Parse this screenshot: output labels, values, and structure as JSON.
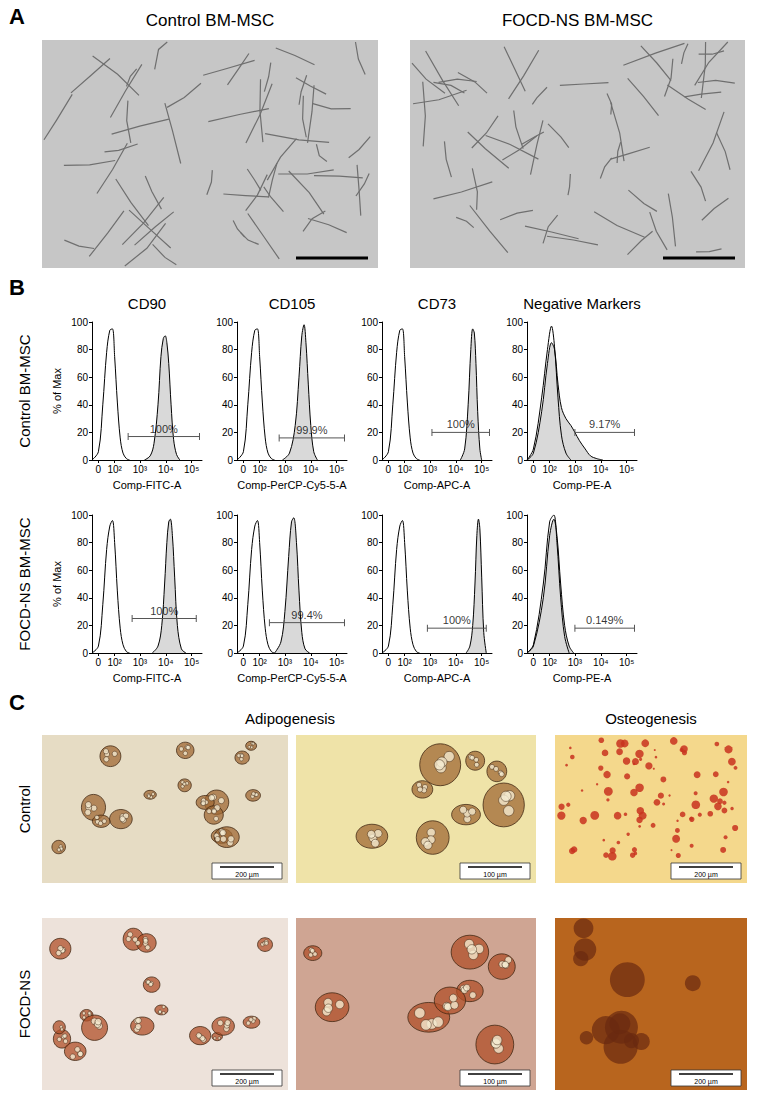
{
  "figure": {
    "panel_A": {
      "letter": "A",
      "images": [
        {
          "title": "Control BM-MSC"
        },
        {
          "title": "FOCD-NS BM-MSC"
        }
      ]
    },
    "panel_B": {
      "letter": "B",
      "columns": [
        "CD90",
        "CD105",
        "CD73",
        "Negative Markers"
      ],
      "rows": [
        "Control BM-MSC",
        "FOCD-NS BM-MSC"
      ]
    },
    "panel_C": {
      "letter": "C",
      "columns": [
        "Adipogenesis",
        "Osteogenesis"
      ],
      "rows": [
        "Control",
        "FOCD-NS"
      ],
      "scale_bars": [
        [
          "200 µm",
          "100 µm",
          "200 µm"
        ],
        [
          "200 µm",
          "100 µm",
          "200 µm"
        ]
      ]
    }
  },
  "chart_data": [
    {
      "type": "line",
      "x_label": "Comp-FITC-A",
      "y_label": "% of Max",
      "grid": false,
      "xlim": [
        -30,
        250000
      ],
      "xticks": [
        {
          "value": 0,
          "label": "0"
        },
        {
          "value": 100,
          "label": "10²"
        },
        {
          "value": 1000,
          "label": "10³"
        },
        {
          "value": 10000,
          "label": "10⁴"
        },
        {
          "value": 100000,
          "label": "10⁵"
        }
      ],
      "ylim": [
        0,
        100
      ],
      "yticks": [
        0,
        20,
        40,
        60,
        80,
        100
      ],
      "series": [
        {
          "type": "area",
          "color": "#d9d9d9",
          "x": [
            1500,
            2500,
            3500,
            5000,
            6500,
            8000,
            9500,
            11000,
            13000,
            16000,
            20000,
            26000,
            35000
          ],
          "values": [
            0,
            3,
            12,
            40,
            75,
            88,
            90,
            85,
            70,
            40,
            15,
            4,
            0
          ]
        },
        {
          "type": "line",
          "color": "#000000",
          "x": [
            -30,
            0,
            20,
            40,
            60,
            80,
            100,
            130,
            170,
            220,
            300,
            400
          ],
          "values": [
            0,
            6,
            40,
            78,
            94,
            95,
            75,
            42,
            16,
            5,
            1,
            0
          ]
        }
      ],
      "gate": {
        "x": [
          350,
          200000
        ],
        "y": 17,
        "label": "100%"
      }
    },
    {
      "type": "line",
      "x_label": "Comp-PerCP-Cy5-5-A",
      "grid": false,
      "xlim": [
        -30,
        250000
      ],
      "xticks": [
        {
          "value": 0,
          "label": "0"
        },
        {
          "value": 100,
          "label": "10²"
        },
        {
          "value": 1000,
          "label": "10³"
        },
        {
          "value": 10000,
          "label": "10⁴"
        },
        {
          "value": 100000,
          "label": "10⁵"
        }
      ],
      "ylim": [
        0,
        100
      ],
      "yticks": [
        0,
        20,
        40,
        60,
        80,
        100
      ],
      "series": [
        {
          "type": "area",
          "color": "#d9d9d9",
          "x": [
            800,
            1500,
            2500,
            3500,
            4500,
            5500,
            6500,
            8000,
            10000,
            13000,
            18000
          ],
          "values": [
            0,
            5,
            25,
            60,
            90,
            98,
            85,
            55,
            25,
            6,
            0
          ]
        },
        {
          "type": "line",
          "color": "#000000",
          "x": [
            -30,
            0,
            20,
            40,
            60,
            80,
            100,
            130,
            170,
            220,
            300,
            400
          ],
          "values": [
            0,
            6,
            40,
            78,
            94,
            95,
            75,
            42,
            16,
            5,
            1,
            0
          ]
        }
      ],
      "gate": {
        "x": [
          600,
          200000
        ],
        "y": 16,
        "label": "99.9%"
      }
    },
    {
      "type": "line",
      "x_label": "Comp-APC-A",
      "grid": false,
      "xlim": [
        -30,
        250000
      ],
      "xticks": [
        {
          "value": 0,
          "label": "0"
        },
        {
          "value": 100,
          "label": "10²"
        },
        {
          "value": 1000,
          "label": "10³"
        },
        {
          "value": 10000,
          "label": "10⁴"
        },
        {
          "value": 100000,
          "label": "10⁵"
        }
      ],
      "ylim": [
        0,
        100
      ],
      "yticks": [
        0,
        20,
        40,
        60,
        80,
        100
      ],
      "series": [
        {
          "type": "area",
          "color": "#d9d9d9",
          "x": [
            15000,
            22000,
            30000,
            38000,
            45000,
            52000,
            60000,
            70000,
            85000,
            100000
          ],
          "values": [
            0,
            8,
            40,
            80,
            95,
            92,
            70,
            35,
            8,
            0
          ]
        },
        {
          "type": "line",
          "color": "#000000",
          "x": [
            -30,
            0,
            20,
            40,
            60,
            80,
            100,
            130,
            170,
            220,
            300,
            400
          ],
          "values": [
            0,
            6,
            40,
            78,
            94,
            95,
            75,
            42,
            16,
            5,
            1,
            0
          ]
        }
      ],
      "gate": {
        "x": [
          1200,
          200000
        ],
        "y": 20,
        "label": "100%"
      }
    },
    {
      "type": "line",
      "x_label": "Comp-PE-A",
      "grid": false,
      "xlim": [
        -30,
        250000
      ],
      "xticks": [
        {
          "value": 0,
          "label": "0"
        },
        {
          "value": 100,
          "label": "10²"
        },
        {
          "value": 1000,
          "label": "10³"
        },
        {
          "value": 10000,
          "label": "10⁴"
        },
        {
          "value": 100000,
          "label": "10⁵"
        }
      ],
      "ylim": [
        0,
        100
      ],
      "yticks": [
        0,
        20,
        40,
        60,
        80,
        100
      ],
      "series": [
        {
          "type": "area",
          "color": "#d9d9d9",
          "x": [
            -30,
            0,
            40,
            80,
            120,
            160,
            220,
            300,
            450,
            700,
            1000,
            1500,
            2500,
            4000,
            7000,
            12000
          ],
          "values": [
            0,
            5,
            35,
            70,
            85,
            80,
            55,
            38,
            30,
            25,
            20,
            14,
            8,
            3,
            1,
            0
          ]
        },
        {
          "type": "line",
          "color": "#000000",
          "x": [
            -30,
            0,
            40,
            80,
            120,
            160,
            220,
            300,
            450,
            700
          ],
          "values": [
            0,
            8,
            45,
            80,
            97,
            82,
            45,
            18,
            5,
            0
          ]
        }
      ],
      "gate": {
        "x": [
          1000,
          200000
        ],
        "y": 20,
        "label": "9.17%"
      }
    },
    {
      "type": "line",
      "x_label": "Comp-FITC-A",
      "y_label": "% of Max",
      "grid": false,
      "xlim": [
        -30,
        250000
      ],
      "xticks": [
        {
          "value": 0,
          "label": "0"
        },
        {
          "value": 100,
          "label": "10²"
        },
        {
          "value": 1000,
          "label": "10³"
        },
        {
          "value": 10000,
          "label": "10⁴"
        },
        {
          "value": 100000,
          "label": "10⁵"
        }
      ],
      "ylim": [
        0,
        100
      ],
      "yticks": [
        0,
        20,
        40,
        60,
        80,
        100
      ],
      "series": [
        {
          "type": "area",
          "color": "#d9d9d9",
          "x": [
            3000,
            5000,
            7000,
            9000,
            11000,
            13000,
            15000,
            18000,
            22000,
            28000,
            40000,
            60000
          ],
          "values": [
            0,
            5,
            20,
            50,
            80,
            95,
            97,
            85,
            55,
            20,
            3,
            0
          ]
        },
        {
          "type": "line",
          "color": "#000000",
          "x": [
            -30,
            0,
            20,
            40,
            60,
            80,
            100,
            130,
            170,
            220,
            300,
            400
          ],
          "values": [
            0,
            5,
            35,
            75,
            92,
            96,
            80,
            45,
            18,
            6,
            1,
            0
          ]
        }
      ],
      "gate": {
        "x": [
          500,
          150000
        ],
        "y": 25,
        "label": "100%"
      }
    },
    {
      "type": "line",
      "x_label": "Comp-PerCP-Cy5-5-A",
      "grid": false,
      "xlim": [
        -30,
        250000
      ],
      "xticks": [
        {
          "value": 0,
          "label": "0"
        },
        {
          "value": 100,
          "label": "10²"
        },
        {
          "value": 1000,
          "label": "10³"
        },
        {
          "value": 10000,
          "label": "10⁴"
        },
        {
          "value": 100000,
          "label": "10⁵"
        }
      ],
      "ylim": [
        0,
        100
      ],
      "yticks": [
        0,
        20,
        40,
        60,
        80,
        100
      ],
      "series": [
        {
          "type": "area",
          "color": "#d9d9d9",
          "x": [
            400,
            700,
            1000,
            1400,
            1800,
            2200,
            2800,
            3500,
            4500,
            6000,
            9000
          ],
          "values": [
            0,
            8,
            30,
            70,
            95,
            98,
            80,
            45,
            15,
            3,
            0
          ]
        },
        {
          "type": "line",
          "color": "#000000",
          "x": [
            -30,
            0,
            20,
            40,
            60,
            80,
            100,
            130,
            170,
            220,
            300,
            400
          ],
          "values": [
            0,
            5,
            35,
            75,
            92,
            96,
            80,
            45,
            18,
            6,
            1,
            0
          ]
        }
      ],
      "gate": {
        "x": [
          250,
          200000
        ],
        "y": 22,
        "label": "99.4%"
      }
    },
    {
      "type": "line",
      "x_label": "Comp-APC-A",
      "grid": false,
      "xlim": [
        -30,
        250000
      ],
      "xticks": [
        {
          "value": 0,
          "label": "0"
        },
        {
          "value": 100,
          "label": "10²"
        },
        {
          "value": 1000,
          "label": "10³"
        },
        {
          "value": 10000,
          "label": "10⁴"
        },
        {
          "value": 100000,
          "label": "10⁵"
        }
      ],
      "ylim": [
        0,
        100
      ],
      "yticks": [
        0,
        20,
        40,
        60,
        80,
        100
      ],
      "series": [
        {
          "type": "area",
          "color": "#d9d9d9",
          "x": [
            25000,
            35000,
            45000,
            55000,
            65000,
            75000,
            85000,
            100000,
            120000,
            150000
          ],
          "values": [
            0,
            5,
            20,
            50,
            85,
            97,
            90,
            55,
            15,
            0
          ]
        },
        {
          "type": "line",
          "color": "#000000",
          "x": [
            -30,
            0,
            20,
            40,
            60,
            80,
            100,
            130,
            170,
            220,
            300,
            400
          ],
          "values": [
            0,
            5,
            35,
            75,
            92,
            96,
            80,
            45,
            18,
            6,
            1,
            0
          ]
        }
      ],
      "gate": {
        "x": [
          800,
          150000
        ],
        "y": 18,
        "label": "100%"
      }
    },
    {
      "type": "line",
      "x_label": "Comp-PE-A",
      "grid": false,
      "xlim": [
        -30,
        250000
      ],
      "xticks": [
        {
          "value": 0,
          "label": "0"
        },
        {
          "value": 100,
          "label": "10²"
        },
        {
          "value": 1000,
          "label": "10³"
        },
        {
          "value": 10000,
          "label": "10⁴"
        },
        {
          "value": 100000,
          "label": "10⁵"
        }
      ],
      "ylim": [
        0,
        100
      ],
      "yticks": [
        0,
        20,
        40,
        60,
        80,
        100
      ],
      "series": [
        {
          "type": "area",
          "color": "#d9d9d9",
          "x": [
            -30,
            0,
            50,
            100,
            150,
            200,
            280,
            400,
            600,
            900
          ],
          "values": [
            0,
            5,
            40,
            85,
            97,
            85,
            50,
            20,
            5,
            0
          ]
        },
        {
          "type": "line",
          "color": "#000000",
          "x": [
            -30,
            0,
            50,
            100,
            150,
            200,
            280,
            400,
            600
          ],
          "values": [
            0,
            6,
            50,
            95,
            100,
            80,
            40,
            12,
            0
          ]
        }
      ],
      "gate": {
        "x": [
          1000,
          200000
        ],
        "y": 18,
        "label": "0.149%"
      }
    }
  ]
}
